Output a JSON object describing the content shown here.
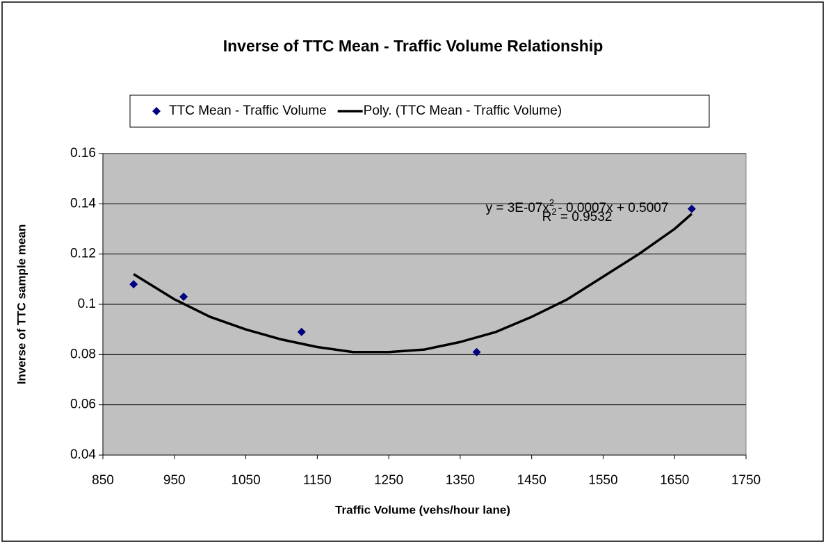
{
  "chart_data": {
    "type": "scatter",
    "title": "Inverse of TTC Mean - Traffic Volume Relationship",
    "x_label": "Traffic Volume (vehs/hour lane)",
    "y_label": "Inverse of TTC sample mean",
    "series": [
      {
        "name": "TTC Mean - Traffic Volume",
        "type": "scatter",
        "color": "#000080",
        "x": [
          893,
          963,
          1128,
          1373,
          1674
        ],
        "values": [
          0.108,
          0.103,
          0.089,
          0.081,
          0.138
        ]
      },
      {
        "name": "Poly. (TTC Mean - Traffic Volume)",
        "type": "line",
        "color": "#000000",
        "x": [
          893,
          950,
          1000,
          1050,
          1100,
          1150,
          1200,
          1250,
          1300,
          1350,
          1400,
          1450,
          1500,
          1550,
          1600,
          1650,
          1674
        ],
        "values": [
          0.112,
          0.102,
          0.095,
          0.09,
          0.086,
          0.083,
          0.081,
          0.081,
          0.082,
          0.085,
          0.089,
          0.095,
          0.102,
          0.111,
          0.12,
          0.13,
          0.136
        ]
      }
    ],
    "annotations": {
      "equation": [
        "y = 3E-07x",
        "2",
        " - 0.0007x + 0.5007"
      ],
      "r_squared": [
        "R",
        "2",
        " = 0.9532"
      ]
    },
    "xlim": [
      850,
      1750
    ],
    "xticks": [
      850,
      950,
      1050,
      1150,
      1250,
      1350,
      1450,
      1550,
      1650,
      1750
    ],
    "ylim": [
      0.04,
      0.16
    ],
    "yticks": [
      0.04,
      0.06,
      0.08,
      0.1,
      0.12,
      0.14,
      0.16
    ],
    "grid": true,
    "plot_background": "#c0c0c0",
    "legend": "top"
  }
}
